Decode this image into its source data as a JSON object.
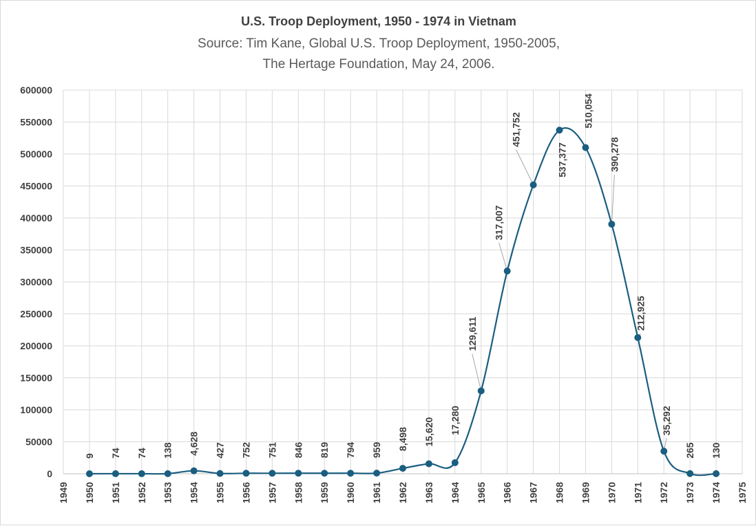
{
  "chart_data": {
    "type": "line",
    "title": "U.S. Troop Deployment, 1950 - 1974 in Vietnam",
    "subtitle_lines": [
      "Source: Tim Kane, Global U.S. Troop Deployment, 1950-2005,",
      "The Hertage Foundation, May 24, 2006."
    ],
    "xlabel": "",
    "ylabel": "",
    "xlim": [
      1949,
      1975
    ],
    "ylim": [
      0,
      600000
    ],
    "x_ticks": [
      1949,
      1950,
      1951,
      1952,
      1953,
      1954,
      1955,
      1956,
      1957,
      1958,
      1959,
      1960,
      1961,
      1962,
      1963,
      1964,
      1965,
      1966,
      1967,
      1968,
      1969,
      1970,
      1971,
      1972,
      1973,
      1974,
      1975
    ],
    "y_ticks": [
      0,
      50000,
      100000,
      150000,
      200000,
      250000,
      300000,
      350000,
      400000,
      450000,
      500000,
      550000,
      600000
    ],
    "smooth": true,
    "grid": true,
    "series_color": "#1a5e80",
    "series": [
      {
        "x": [
          1950,
          1951,
          1952,
          1953,
          1954,
          1955,
          1956,
          1957,
          1958,
          1959,
          1960,
          1961,
          1962,
          1963,
          1964,
          1965,
          1966,
          1967,
          1968,
          1969,
          1970,
          1971,
          1972,
          1973,
          1974
        ],
        "values": [
          9,
          74,
          74,
          138,
          4628,
          427,
          752,
          751,
          846,
          819,
          794,
          959,
          8498,
          15620,
          17280,
          129611,
          317007,
          451752,
          537377,
          510054,
          390278,
          212925,
          35292,
          265,
          130
        ],
        "labels": [
          "9",
          "74",
          "74",
          "138",
          "4,628",
          "427",
          "752",
          "751",
          "846",
          "819",
          "794",
          "959",
          "8,498",
          "15,620",
          "17,280",
          "129,611",
          "317,007",
          "451,752",
          "537,377",
          "510,054",
          "390,278",
          "212,925",
          "35,292",
          "265",
          "130"
        ]
      }
    ]
  }
}
